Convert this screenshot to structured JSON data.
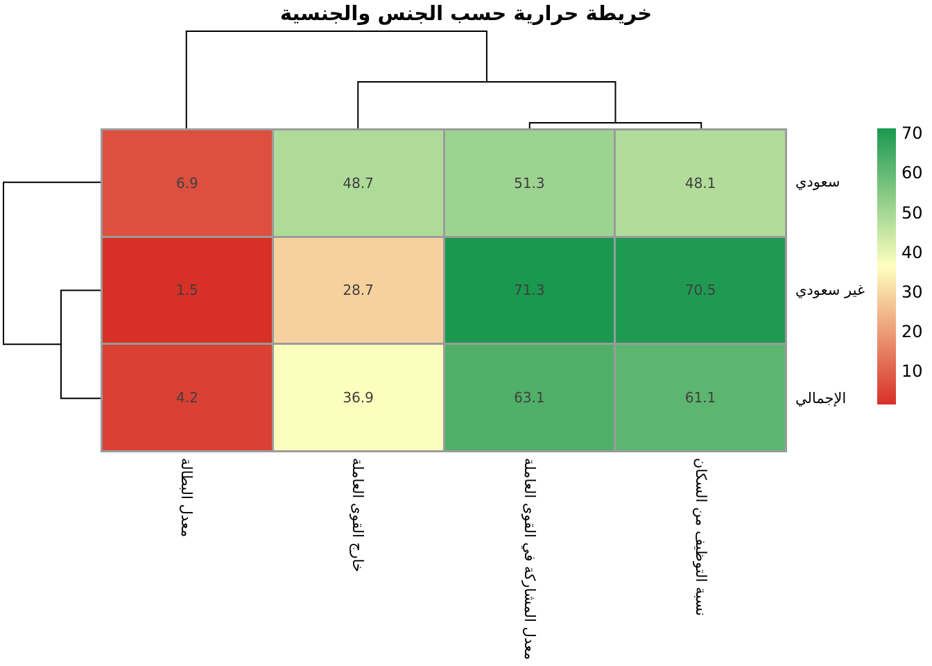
{
  "title": "خريطة حرارية حسب الجنس والجنسية",
  "chart_data": {
    "type": "heatmap",
    "title": "خريطة حرارية حسب الجنس والجنسية",
    "rows": [
      "سعودي",
      "غير سعودي",
      "الإجمالي"
    ],
    "columns": [
      "معدل البطالة",
      "خارج القوى العاملة",
      "معدل المشاركة في القوى العاملة",
      "نسبة التوظيف من السكان"
    ],
    "values": [
      [
        6.9,
        48.7,
        51.3,
        48.1
      ],
      [
        1.5,
        28.7,
        71.3,
        70.5
      ],
      [
        4.2,
        36.9,
        63.1,
        61.1
      ]
    ],
    "color_scale": {
      "domain": [
        1.5,
        71.3
      ],
      "stops": [
        "#d73027",
        "#ffffbf",
        "#1a9850"
      ],
      "description": "red-yellow-green diverging, low=red high=green"
    },
    "legend": {
      "ticks": [
        70,
        60,
        50,
        40,
        30,
        20,
        10
      ],
      "position": "right"
    },
    "cell_border_color": "#9b9b9b",
    "value_text_color": "#3f3f3f",
    "grid": false,
    "clustering": {
      "rows": "(سعودي , (غير سعودي , الإجمالي))",
      "columns": "(معدل البطالة , (خارج القوى العاملة , (معدل المشاركة في القوى العاملة , نسبة التوظيف من السكان)))"
    }
  }
}
